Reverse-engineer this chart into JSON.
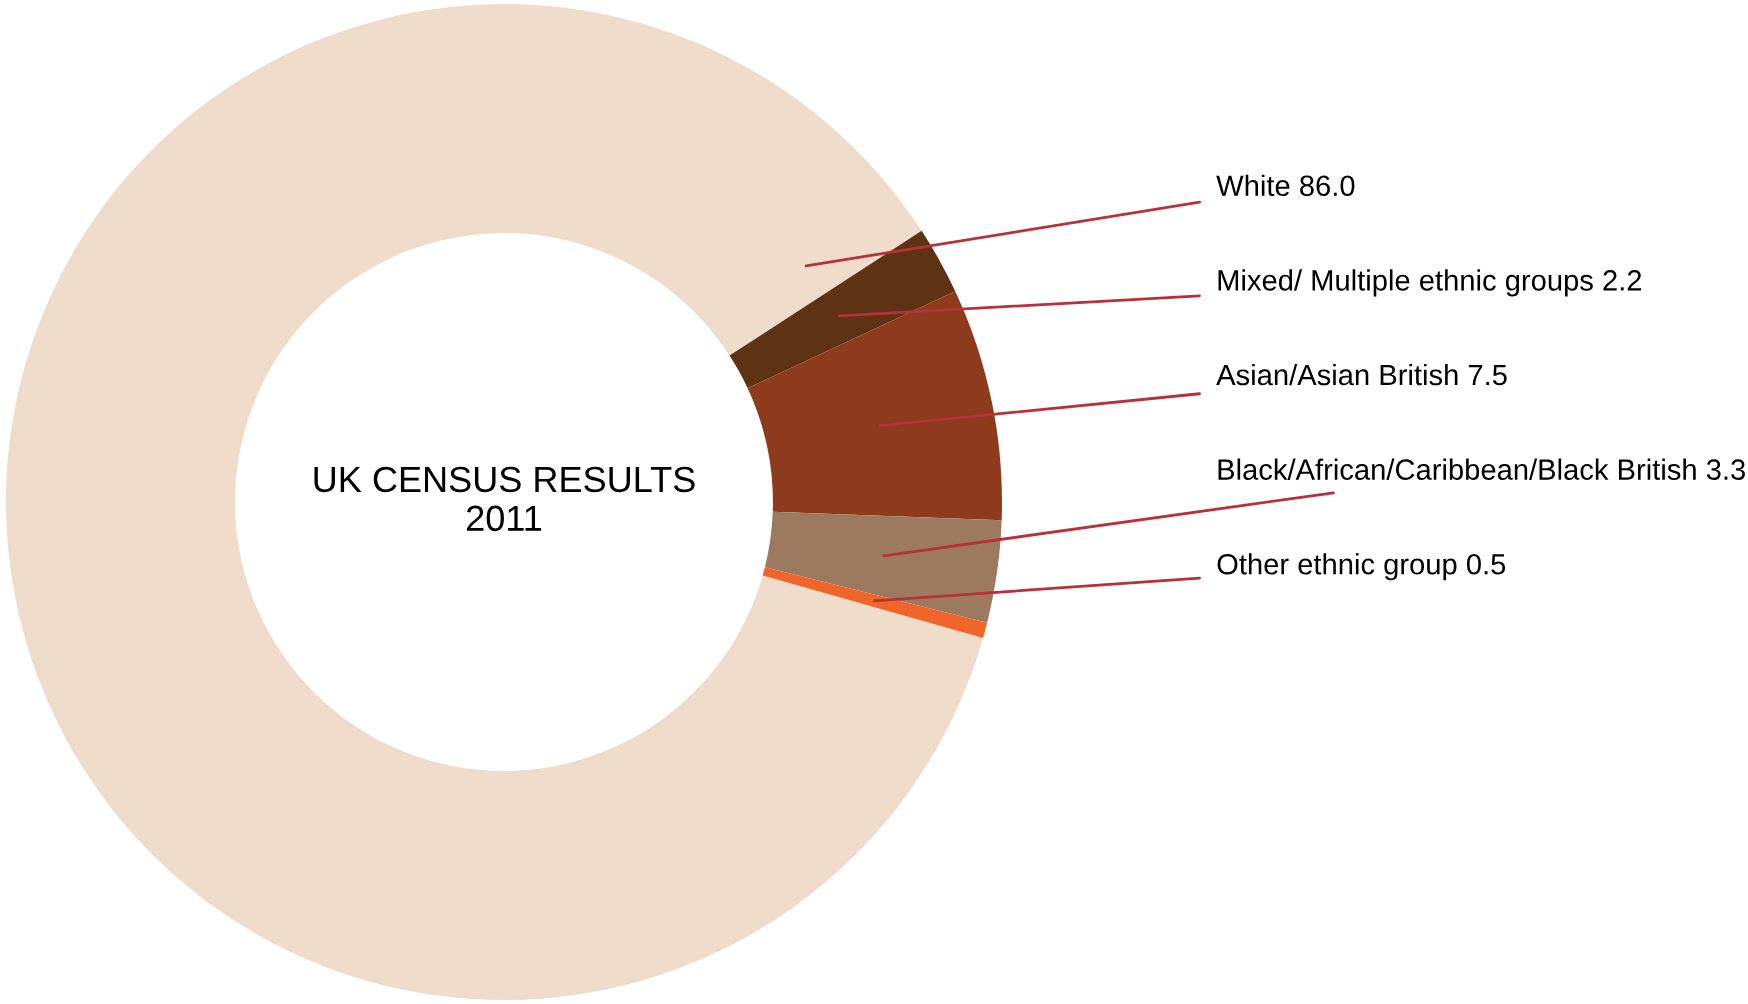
{
  "chart_data": {
    "type": "donut",
    "title": "UK CENSUS RESULTS\n2011",
    "categories": [
      "White",
      "Mixed/ Multiple ethnic groups",
      "Asian/Asian British",
      "Black/African/Caribbean/Black British",
      "Other ethnic group"
    ],
    "values": [
      86.0,
      2.2,
      7.5,
      3.3,
      0.5
    ],
    "value_labels": [
      "86.0",
      "2.2",
      "7.5",
      "3.3",
      "0.5"
    ],
    "colors": [
      "#f0dccb",
      "#5e3314",
      "#8e3a1c",
      "#9b7a60",
      "#f0652a"
    ],
    "data_labels": true,
    "legend": false
  }
}
